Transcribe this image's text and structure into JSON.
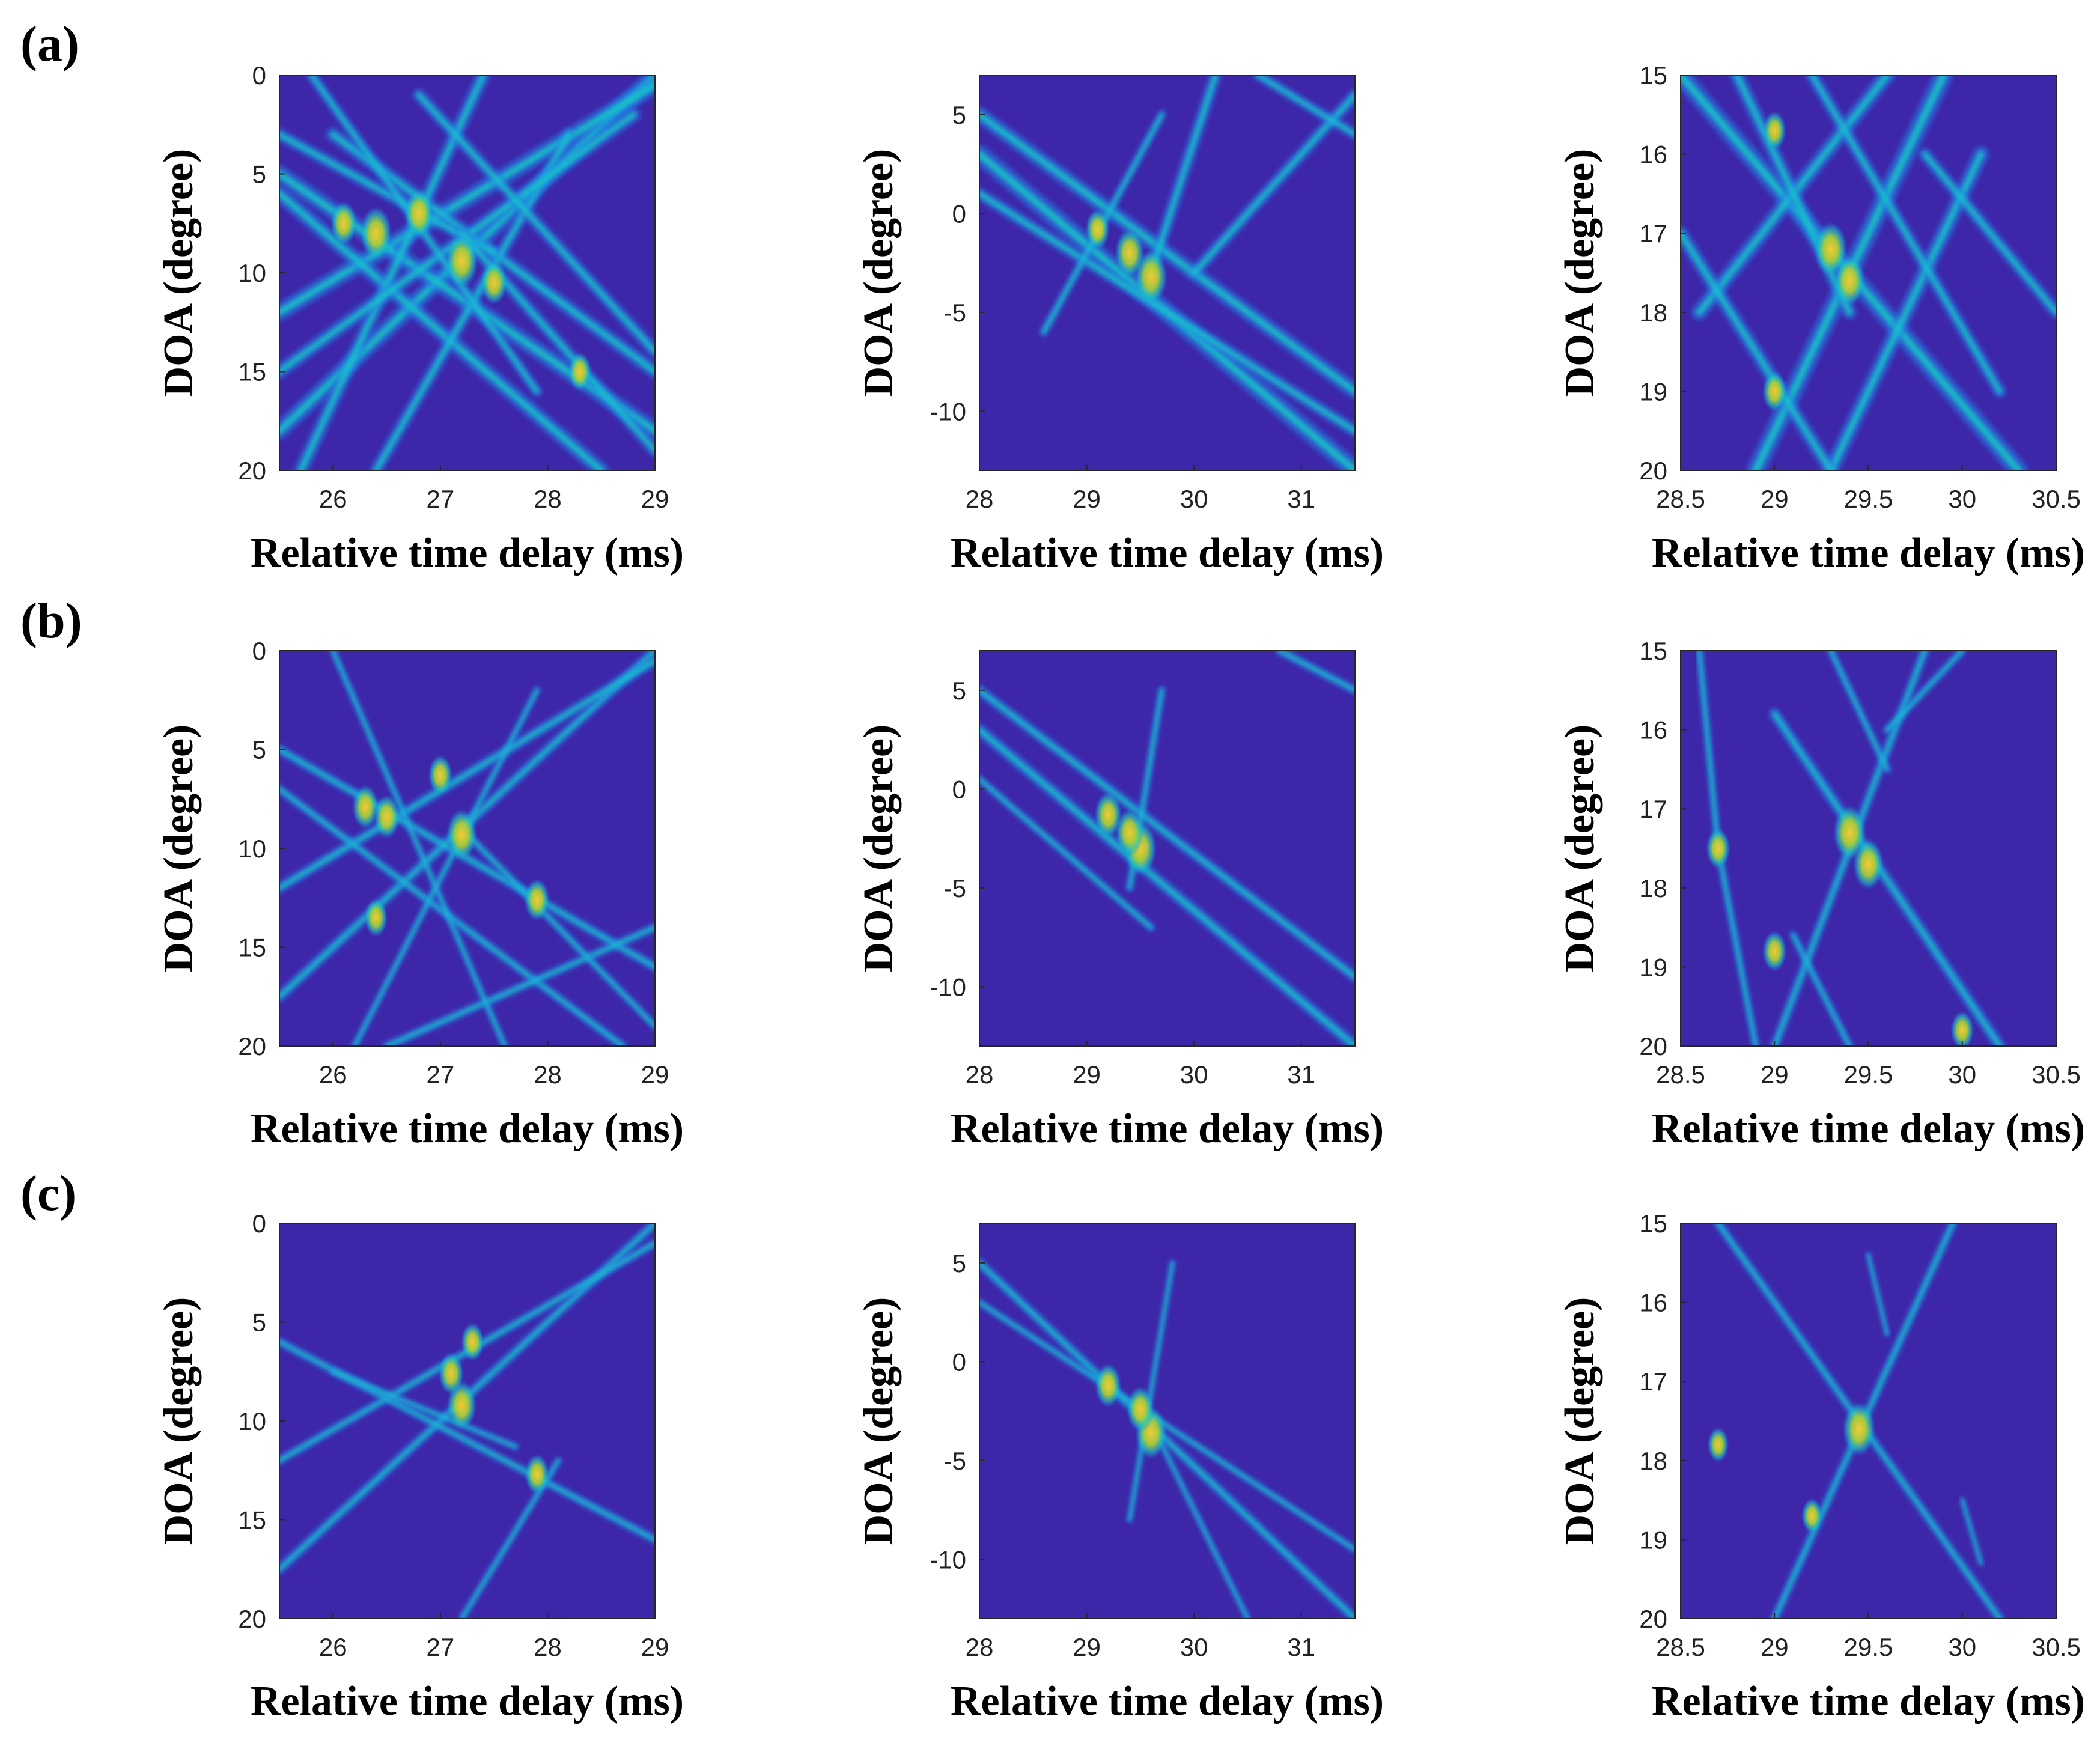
{
  "row_labels": [
    "(a)",
    "(b)",
    "(c)"
  ],
  "colors": {
    "background": "#3e26a8",
    "low": "#1f7de8",
    "mid": "#19c6c8",
    "high": "#a6cd3b",
    "peak": "#f7c934"
  },
  "chart_data": [
    {
      "panel": "a-1",
      "type": "heatmap",
      "xlabel": "Relative time delay (ms)",
      "ylabel": "DOA (degree)",
      "xlim": [
        25.5,
        29
      ],
      "ylim": [
        0,
        20
      ],
      "y_reversed": true,
      "xticks": [
        26,
        27,
        28,
        29
      ],
      "xticklabels": [
        "26",
        "27",
        "28",
        "29"
      ],
      "yticks": [
        0,
        5,
        10,
        15,
        20
      ],
      "yticklabels": [
        "0",
        "5",
        "10",
        "15",
        "20"
      ],
      "lines": [
        {
          "x": [
            25.5,
            29
          ],
          "y": [
            18,
            0
          ],
          "w": 0.9
        },
        {
          "x": [
            25.5,
            29
          ],
          "y": [
            12,
            0.5
          ],
          "w": 0.9
        },
        {
          "x": [
            25.5,
            29
          ],
          "y": [
            5,
            18
          ],
          "w": 0.9
        },
        {
          "x": [
            25.5,
            28.5
          ],
          "y": [
            6,
            20
          ],
          "w": 0.8
        },
        {
          "x": [
            26,
            29
          ],
          "y": [
            3,
            15
          ],
          "w": 0.7
        },
        {
          "x": [
            25.7,
            27.4
          ],
          "y": [
            20,
            0
          ],
          "w": 0.7
        },
        {
          "x": [
            26.4,
            28.2
          ],
          "y": [
            20,
            3
          ],
          "w": 0.6
        },
        {
          "x": [
            25.5,
            28.8
          ],
          "y": [
            15,
            2
          ],
          "w": 0.7
        },
        {
          "x": [
            26.8,
            29
          ],
          "y": [
            1,
            14
          ],
          "w": 0.6
        },
        {
          "x": [
            25.5,
            27.5
          ],
          "y": [
            3,
            9
          ],
          "w": 0.6
        },
        {
          "x": [
            27.2,
            29
          ],
          "y": [
            8,
            19
          ],
          "w": 0.6
        },
        {
          "x": [
            25.8,
            27.9
          ],
          "y": [
            0,
            16
          ],
          "w": 0.5
        }
      ],
      "peaks": [
        {
          "x": 27.2,
          "y": 9.4,
          "v": 1.0
        },
        {
          "x": 26.4,
          "y": 8.0,
          "v": 0.95
        },
        {
          "x": 26.8,
          "y": 7.0,
          "v": 0.85
        },
        {
          "x": 27.5,
          "y": 10.5,
          "v": 0.7
        },
        {
          "x": 26.1,
          "y": 7.5,
          "v": 0.7
        },
        {
          "x": 28.3,
          "y": 15.0,
          "v": 0.55
        }
      ]
    },
    {
      "panel": "a-2",
      "type": "heatmap",
      "xlabel": "Relative time delay (ms)",
      "ylabel": "DOA (degree)",
      "xlim": [
        28,
        31.5
      ],
      "ylim": [
        -13,
        7
      ],
      "y_reversed": false,
      "xticks": [
        28,
        29,
        30,
        31
      ],
      "xticklabels": [
        "28",
        "29",
        "30",
        "31"
      ],
      "yticks": [
        -10,
        -5,
        0,
        5
      ],
      "yticklabels": [
        "-10",
        "-5",
        "0",
        "5"
      ],
      "lines": [
        {
          "x": [
            28,
            31.5
          ],
          "y": [
            3,
            -13
          ],
          "w": 1.0
        },
        {
          "x": [
            28,
            31.5
          ],
          "y": [
            5,
            -9
          ],
          "w": 0.8
        },
        {
          "x": [
            28,
            31.5
          ],
          "y": [
            1,
            -11
          ],
          "w": 0.6
        },
        {
          "x": [
            29.6,
            30.2
          ],
          "y": [
            -3,
            7
          ],
          "w": 0.6
        },
        {
          "x": [
            30.0,
            31.5
          ],
          "y": [
            -3,
            6
          ],
          "w": 0.6
        },
        {
          "x": [
            28.6,
            29.7
          ],
          "y": [
            -6,
            5
          ],
          "w": 0.4
        },
        {
          "x": [
            30.6,
            31.5
          ],
          "y": [
            7,
            4
          ],
          "w": 0.5
        }
      ],
      "peaks": [
        {
          "x": 29.6,
          "y": -3.2,
          "v": 1.0
        },
        {
          "x": 29.4,
          "y": -2.0,
          "v": 0.85
        },
        {
          "x": 29.1,
          "y": -0.8,
          "v": 0.6
        }
      ]
    },
    {
      "panel": "a-3",
      "type": "heatmap",
      "xlabel": "Relative time delay (ms)",
      "ylabel": "DOA (degree)",
      "xlim": [
        28.5,
        30.5
      ],
      "ylim": [
        15,
        20
      ],
      "y_reversed": true,
      "xticks": [
        28.5,
        29,
        29.5,
        30,
        30.5
      ],
      "xticklabels": [
        "28.5",
        "29",
        "29.5",
        "30",
        "30.5"
      ],
      "yticks": [
        15,
        16,
        17,
        18,
        19,
        20
      ],
      "yticklabels": [
        "15",
        "16",
        "17",
        "18",
        "19",
        "20"
      ],
      "lines": [
        {
          "x": [
            28.5,
            30.3
          ],
          "y": [
            15,
            20
          ],
          "w": 1.0
        },
        {
          "x": [
            28.9,
            29.9
          ],
          "y": [
            20,
            15
          ],
          "w": 1.0
        },
        {
          "x": [
            28.6,
            29.6
          ],
          "y": [
            18,
            15
          ],
          "w": 0.8
        },
        {
          "x": [
            29.3,
            30.1
          ],
          "y": [
            20,
            16
          ],
          "w": 0.8
        },
        {
          "x": [
            28.5,
            29.3
          ],
          "y": [
            17,
            20
          ],
          "w": 0.7
        },
        {
          "x": [
            29.8,
            30.5
          ],
          "y": [
            16,
            18
          ],
          "w": 0.6
        },
        {
          "x": [
            28.8,
            29.4
          ],
          "y": [
            15,
            18
          ],
          "w": 0.7
        },
        {
          "x": [
            29.2,
            30.2
          ],
          "y": [
            15,
            19
          ],
          "w": 0.6
        }
      ],
      "peaks": [
        {
          "x": 29.3,
          "y": 17.2,
          "v": 1.0
        },
        {
          "x": 29.4,
          "y": 17.6,
          "v": 0.9
        },
        {
          "x": 29.0,
          "y": 19.0,
          "v": 0.6
        },
        {
          "x": 29.0,
          "y": 15.7,
          "v": 0.55
        }
      ]
    },
    {
      "panel": "b-1",
      "type": "heatmap",
      "xlabel": "Relative time delay (ms)",
      "ylabel": "DOA (degree)",
      "xlim": [
        25.5,
        29
      ],
      "ylim": [
        0,
        20
      ],
      "y_reversed": true,
      "xticks": [
        26,
        27,
        28,
        29
      ],
      "xticklabels": [
        "26",
        "27",
        "28",
        "29"
      ],
      "yticks": [
        0,
        5,
        10,
        15,
        20
      ],
      "yticklabels": [
        "0",
        "5",
        "10",
        "15",
        "20"
      ],
      "lines": [
        {
          "x": [
            25.5,
            29
          ],
          "y": [
            17.5,
            0
          ],
          "w": 0.5
        },
        {
          "x": [
            25.5,
            29
          ],
          "y": [
            12,
            0.5
          ],
          "w": 0.5
        },
        {
          "x": [
            25.5,
            29
          ],
          "y": [
            5,
            16
          ],
          "w": 0.45
        },
        {
          "x": [
            25.5,
            28.7
          ],
          "y": [
            7,
            20
          ],
          "w": 0.4
        },
        {
          "x": [
            26.5,
            29
          ],
          "y": [
            20,
            14
          ],
          "w": 0.4
        },
        {
          "x": [
            26.0,
            27.6
          ],
          "y": [
            0,
            20
          ],
          "w": 0.3
        },
        {
          "x": [
            26.2,
            27.9
          ],
          "y": [
            20,
            2
          ],
          "w": 0.3
        },
        {
          "x": [
            27.2,
            29
          ],
          "y": [
            9,
            19
          ],
          "w": 0.35
        }
      ],
      "peaks": [
        {
          "x": 27.2,
          "y": 9.3,
          "v": 0.9
        },
        {
          "x": 26.3,
          "y": 7.9,
          "v": 0.7
        },
        {
          "x": 26.5,
          "y": 8.4,
          "v": 0.7
        },
        {
          "x": 27.9,
          "y": 12.6,
          "v": 0.65
        },
        {
          "x": 27.0,
          "y": 6.3,
          "v": 0.6
        },
        {
          "x": 26.4,
          "y": 13.5,
          "v": 0.55
        }
      ]
    },
    {
      "panel": "b-2",
      "type": "heatmap",
      "xlabel": "Relative time delay (ms)",
      "ylabel": "DOA (degree)",
      "xlim": [
        28,
        31.5
      ],
      "ylim": [
        -13,
        7
      ],
      "y_reversed": false,
      "xticks": [
        28,
        29,
        30,
        31
      ],
      "xticklabels": [
        "28",
        "29",
        "30",
        "31"
      ],
      "yticks": [
        -10,
        -5,
        0,
        5
      ],
      "yticklabels": [
        "-10",
        "-5",
        "0",
        "5"
      ],
      "lines": [
        {
          "x": [
            28,
            31.5
          ],
          "y": [
            3,
            -13
          ],
          "w": 0.6
        },
        {
          "x": [
            28,
            31.5
          ],
          "y": [
            5,
            -9.5
          ],
          "w": 0.5
        },
        {
          "x": [
            28,
            29.6
          ],
          "y": [
            0.5,
            -7
          ],
          "w": 0.35
        },
        {
          "x": [
            29.4,
            29.7
          ],
          "y": [
            -5,
            5
          ],
          "w": 0.35
        },
        {
          "x": [
            30.8,
            31.5
          ],
          "y": [
            7,
            5
          ],
          "w": 0.4
        }
      ],
      "peaks": [
        {
          "x": 29.5,
          "y": -3.0,
          "v": 1.0
        },
        {
          "x": 29.2,
          "y": -1.3,
          "v": 0.75
        },
        {
          "x": 29.4,
          "y": -2.2,
          "v": 0.8
        }
      ]
    },
    {
      "panel": "b-3",
      "type": "heatmap",
      "xlabel": "Relative time delay (ms)",
      "ylabel": "DOA (degree)",
      "xlim": [
        28.5,
        30.5
      ],
      "ylim": [
        15,
        20
      ],
      "y_reversed": true,
      "xticks": [
        28.5,
        29,
        29.5,
        30,
        30.5
      ],
      "xticklabels": [
        "28.5",
        "29",
        "29.5",
        "30",
        "30.5"
      ],
      "yticks": [
        15,
        16,
        17,
        18,
        19,
        20
      ],
      "yticklabels": [
        "15",
        "16",
        "17",
        "18",
        "19",
        "20"
      ],
      "lines": [
        {
          "x": [
            29.0,
            30.2
          ],
          "y": [
            15.8,
            20
          ],
          "w": 0.55
        },
        {
          "x": [
            29.0,
            29.8
          ],
          "y": [
            20,
            15
          ],
          "w": 0.45
        },
        {
          "x": [
            28.6,
            28.7
          ],
          "y": [
            15,
            17.5
          ],
          "w": 0.35
        },
        {
          "x": [
            28.7,
            28.9
          ],
          "y": [
            17.5,
            20
          ],
          "w": 0.35
        },
        {
          "x": [
            29.6,
            30.0
          ],
          "y": [
            16,
            15
          ],
          "w": 0.35
        },
        {
          "x": [
            29.3,
            29.6
          ],
          "y": [
            15,
            16.5
          ],
          "w": 0.35
        },
        {
          "x": [
            29.1,
            29.4
          ],
          "y": [
            18.6,
            20
          ],
          "w": 0.35
        }
      ],
      "peaks": [
        {
          "x": 29.4,
          "y": 17.3,
          "v": 1.0
        },
        {
          "x": 29.5,
          "y": 17.7,
          "v": 0.9
        },
        {
          "x": 28.7,
          "y": 17.5,
          "v": 0.6
        },
        {
          "x": 29.0,
          "y": 18.8,
          "v": 0.6
        },
        {
          "x": 30.0,
          "y": 19.8,
          "v": 0.55
        }
      ]
    },
    {
      "panel": "c-1",
      "type": "heatmap",
      "xlabel": "Relative time delay (ms)",
      "ylabel": "DOA (degree)",
      "xlim": [
        25.5,
        29
      ],
      "ylim": [
        0,
        20
      ],
      "y_reversed": true,
      "xticks": [
        26,
        27,
        28,
        29
      ],
      "xticklabels": [
        "26",
        "27",
        "28",
        "29"
      ],
      "yticks": [
        0,
        5,
        10,
        15,
        20
      ],
      "yticklabels": [
        "0",
        "5",
        "10",
        "15",
        "20"
      ],
      "lines": [
        {
          "x": [
            25.5,
            29
          ],
          "y": [
            17.5,
            0
          ],
          "w": 0.45
        },
        {
          "x": [
            25.5,
            29
          ],
          "y": [
            12,
            1
          ],
          "w": 0.4
        },
        {
          "x": [
            25.5,
            29
          ],
          "y": [
            6,
            16
          ],
          "w": 0.4
        },
        {
          "x": [
            26.0,
            27.7
          ],
          "y": [
            7.5,
            11.3
          ],
          "w": 0.3
        },
        {
          "x": [
            27.2,
            28.1
          ],
          "y": [
            20,
            12
          ],
          "w": 0.3
        }
      ],
      "peaks": [
        {
          "x": 27.2,
          "y": 9.2,
          "v": 0.85
        },
        {
          "x": 27.1,
          "y": 7.6,
          "v": 0.65
        },
        {
          "x": 27.9,
          "y": 12.7,
          "v": 0.6
        },
        {
          "x": 27.3,
          "y": 6.0,
          "v": 0.55
        }
      ]
    },
    {
      "panel": "c-2",
      "type": "heatmap",
      "xlabel": "Relative time delay (ms)",
      "ylabel": "DOA (degree)",
      "xlim": [
        28,
        31.5
      ],
      "ylim": [
        -13,
        7
      ],
      "y_reversed": false,
      "xticks": [
        28,
        29,
        30,
        31
      ],
      "xticklabels": [
        "28",
        "29",
        "30",
        "31"
      ],
      "yticks": [
        -10,
        -5,
        0,
        5
      ],
      "yticklabels": [
        "-10",
        "-5",
        "0",
        "5"
      ],
      "lines": [
        {
          "x": [
            28,
            31.5
          ],
          "y": [
            5,
            -13
          ],
          "w": 0.45
        },
        {
          "x": [
            28,
            31.5
          ],
          "y": [
            3,
            -9.5
          ],
          "w": 0.3
        },
        {
          "x": [
            29.4,
            29.8
          ],
          "y": [
            -8,
            5
          ],
          "w": 0.25
        },
        {
          "x": [
            29.5,
            30.5
          ],
          "y": [
            -2,
            -13
          ],
          "w": 0.25
        }
      ],
      "peaks": [
        {
          "x": 29.6,
          "y": -3.6,
          "v": 0.95
        },
        {
          "x": 29.2,
          "y": -1.2,
          "v": 0.7
        },
        {
          "x": 29.5,
          "y": -2.4,
          "v": 0.75
        }
      ]
    },
    {
      "panel": "c-3",
      "type": "heatmap",
      "xlabel": "Relative time delay (ms)",
      "ylabel": "DOA (degree)",
      "xlim": [
        28.5,
        30.5
      ],
      "ylim": [
        15,
        20
      ],
      "y_reversed": true,
      "xticks": [
        28.5,
        29,
        29.5,
        30,
        30.5
      ],
      "xticklabels": [
        "28.5",
        "29",
        "29.5",
        "30",
        "30.5"
      ],
      "yticks": [
        15,
        16,
        17,
        18,
        19,
        20
      ],
      "yticklabels": [
        "15",
        "16",
        "17",
        "18",
        "19",
        "20"
      ],
      "lines": [
        {
          "x": [
            28.7,
            30.2
          ],
          "y": [
            15,
            20
          ],
          "w": 0.4
        },
        {
          "x": [
            29.95,
            29.0
          ],
          "y": [
            15,
            20
          ],
          "w": 0.4
        },
        {
          "x": [
            29.5,
            29.6
          ],
          "y": [
            15.4,
            16.4
          ],
          "w": 0.2
        },
        {
          "x": [
            30.0,
            30.1
          ],
          "y": [
            18.5,
            19.3
          ],
          "w": 0.2
        }
      ],
      "peaks": [
        {
          "x": 29.45,
          "y": 17.6,
          "v": 1.0
        },
        {
          "x": 28.7,
          "y": 17.8,
          "v": 0.45
        },
        {
          "x": 29.2,
          "y": 18.7,
          "v": 0.45
        }
      ]
    }
  ]
}
